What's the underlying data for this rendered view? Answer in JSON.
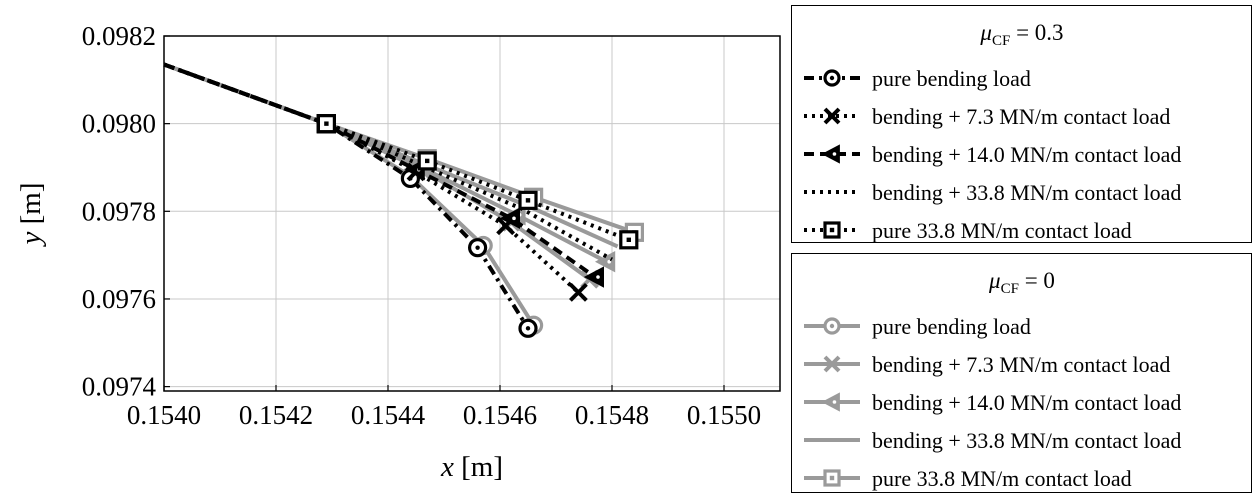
{
  "chart_data": {
    "type": "line",
    "xlabel": "x [m]",
    "ylabel": "y [m]",
    "xlim": [
      0.154,
      0.1551
    ],
    "ylim": [
      0.09739,
      0.0982
    ],
    "xticks": [
      "0.1540",
      "0.1542",
      "0.1544",
      "0.1546",
      "0.1548",
      "0.1550"
    ],
    "xtick_values": [
      0.154,
      0.1542,
      0.1544,
      0.1546,
      0.1548,
      0.155
    ],
    "yticks": [
      "0.0974",
      "0.0976",
      "0.0978",
      "0.0980",
      "0.0982"
    ],
    "ytick_values": [
      0.0974,
      0.0976,
      0.0978,
      0.098,
      0.0982
    ],
    "grid": true,
    "legend_position": "right",
    "groups": [
      {
        "title_symbol": "μ",
        "title_sub": "CF",
        "title_rest": " = 0.3",
        "color": "#000000",
        "series": [
          {
            "name": "pure bending load",
            "marker": "circle",
            "dash": "dashdot",
            "x": [
              0.154,
              0.15429,
              0.15444,
              0.15456,
              0.15465
            ],
            "y": [
              0.098135,
              0.098,
              0.097875,
              0.097717,
              0.097533
            ]
          },
          {
            "name": "bending + 7.3 MN/m contact load",
            "marker": "x",
            "dash": "dotted",
            "x": [
              0.154,
              0.15429,
              0.15445,
              0.15461,
              0.15474
            ],
            "y": [
              0.098135,
              0.098,
              0.09789,
              0.097767,
              0.097615
            ]
          },
          {
            "name": "bending + 14.0 MN/m contact load",
            "marker": "triangle-left",
            "dash": "dashed",
            "x": [
              0.154,
              0.15429,
              0.15445,
              0.15462,
              0.15477
            ],
            "y": [
              0.098135,
              0.098,
              0.097895,
              0.097784,
              0.09765
            ]
          },
          {
            "name": "bending + 33.8 MN/m contact load",
            "marker": "none",
            "dash": "dotted",
            "x": [
              0.154,
              0.15429,
              0.15446,
              0.15464,
              0.1548
            ],
            "y": [
              0.098135,
              0.098,
              0.097905,
              0.097805,
              0.09769
            ]
          },
          {
            "name": "pure 33.8 MN/m contact load",
            "marker": "square",
            "dash": "dotted",
            "x": [
              0.154,
              0.15429,
              0.15447,
              0.15465,
              0.15483
            ],
            "y": [
              0.098135,
              0.098,
              0.097915,
              0.097825,
              0.097735
            ]
          }
        ]
      },
      {
        "title_symbol": "μ",
        "title_sub": "CF",
        "title_rest": " = 0",
        "color": "#9a9a9a",
        "series": [
          {
            "name": "pure bending load",
            "marker": "circle",
            "dash": "solid",
            "x": [
              0.154,
              0.15429,
              0.15444,
              0.15457,
              0.15466
            ],
            "y": [
              0.098135,
              0.098,
              0.09788,
              0.097722,
              0.09754
            ]
          },
          {
            "name": "bending + 7.3 MN/m contact load",
            "marker": "x",
            "dash": "solid",
            "x": [
              0.154,
              0.15429,
              0.15446,
              0.15462,
              0.15476
            ],
            "y": [
              0.098135,
              0.098,
              0.097895,
              0.097775,
              0.097645
            ]
          },
          {
            "name": "bending + 14.0 MN/m contact load",
            "marker": "triangle-left",
            "dash": "solid",
            "x": [
              0.154,
              0.15429,
              0.15446,
              0.15463,
              0.15479
            ],
            "y": [
              0.098135,
              0.098,
              0.0979,
              0.097792,
              0.097685
            ]
          },
          {
            "name": "bending + 33.8 MN/m contact load",
            "marker": "none",
            "dash": "solid",
            "x": [
              0.154,
              0.15429,
              0.15446,
              0.15465,
              0.15481
            ],
            "y": [
              0.098135,
              0.098,
              0.09791,
              0.097812,
              0.09772
            ]
          },
          {
            "name": "pure 33.8 MN/m contact load",
            "marker": "square",
            "dash": "solid",
            "x": [
              0.154,
              0.15429,
              0.15447,
              0.15466,
              0.15484
            ],
            "y": [
              0.098135,
              0.098,
              0.09792,
              0.097832,
              0.097752
            ]
          }
        ]
      }
    ]
  }
}
